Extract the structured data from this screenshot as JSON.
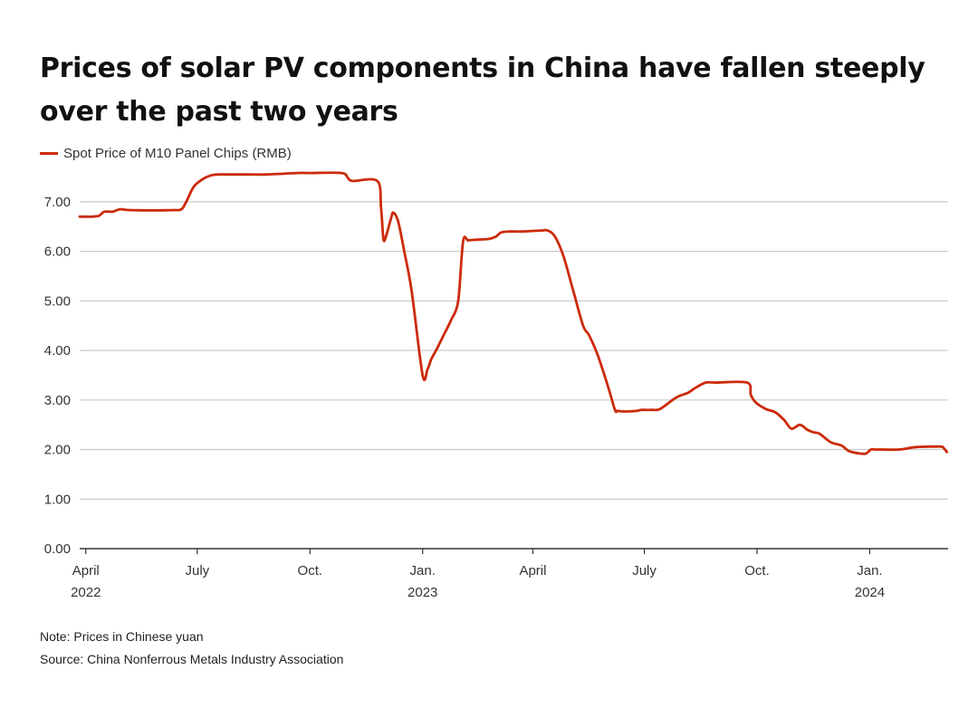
{
  "title": "Prices of solar PV components in China have fallen steeply over the past two years",
  "legend": {
    "label": "Spot Price of M10 Panel Chips (RMB)"
  },
  "colors": {
    "line": "#cc2a0b",
    "grid": "#c8c8c8",
    "axis": "#333333",
    "tick_text": "#333333"
  },
  "footer": {
    "note": "Note: Prices in Chinese yuan",
    "source": "Source: China Nonferrous Metals Industry Association"
  },
  "chart_data": {
    "type": "line",
    "title": "Prices of solar PV components in China have fallen steeply over the past two years",
    "xlabel": "",
    "ylabel": "",
    "ylim": [
      0,
      7.6
    ],
    "xlim": [
      "2022-03-27",
      "2024-03-05"
    ],
    "grid": "horizontal",
    "legend_position": "top-left",
    "y_ticks": [
      {
        "value": 0,
        "label": "0.00"
      },
      {
        "value": 1,
        "label": "1.00"
      },
      {
        "value": 2,
        "label": "2.00"
      },
      {
        "value": 3,
        "label": "3.00"
      },
      {
        "value": 4,
        "label": "4.00"
      },
      {
        "value": 5,
        "label": "5.00"
      },
      {
        "value": 6,
        "label": "6.00"
      },
      {
        "value": 7,
        "label": "7.00"
      }
    ],
    "x_ticks": [
      {
        "date": "2022-04-01",
        "label": "April",
        "sublabel": "2022"
      },
      {
        "date": "2022-07-01",
        "label": "July",
        "sublabel": ""
      },
      {
        "date": "2022-10-01",
        "label": "Oct.",
        "sublabel": ""
      },
      {
        "date": "2023-01-01",
        "label": "Jan.",
        "sublabel": "2023"
      },
      {
        "date": "2023-04-01",
        "label": "April",
        "sublabel": ""
      },
      {
        "date": "2023-07-01",
        "label": "July",
        "sublabel": ""
      },
      {
        "date": "2023-10-01",
        "label": "Oct.",
        "sublabel": ""
      },
      {
        "date": "2024-01-01",
        "label": "Jan.",
        "sublabel": "2024"
      }
    ],
    "series": [
      {
        "name": "Spot Price of M10 Panel Chips (RMB)",
        "x": [
          "2022-03-27",
          "2022-04-06",
          "2022-04-12",
          "2022-04-16",
          "2022-04-23",
          "2022-04-29",
          "2022-05-08",
          "2022-06-10",
          "2022-06-18",
          "2022-06-22",
          "2022-06-28",
          "2022-07-05",
          "2022-07-12",
          "2022-07-19",
          "2022-08-12",
          "2022-08-26",
          "2022-09-20",
          "2022-10-01",
          "2022-10-27",
          "2022-11-01",
          "2022-11-05",
          "2022-11-25",
          "2022-11-28",
          "2022-11-30",
          "2022-12-02",
          "2022-12-06",
          "2022-12-08",
          "2022-12-12",
          "2022-12-17",
          "2022-12-23",
          "2023-01-01",
          "2023-01-05",
          "2023-01-08",
          "2023-01-13",
          "2023-01-18",
          "2023-01-24",
          "2023-01-30",
          "2023-02-03",
          "2023-02-07",
          "2023-02-11",
          "2023-02-24",
          "2023-03-02",
          "2023-03-06",
          "2023-03-13",
          "2023-03-23",
          "2023-04-08",
          "2023-04-13",
          "2023-04-19",
          "2023-04-26",
          "2023-05-04",
          "2023-05-12",
          "2023-05-17",
          "2023-05-24",
          "2023-06-01",
          "2023-06-07",
          "2023-06-09",
          "2023-06-13",
          "2023-06-19",
          "2023-06-25",
          "2023-06-29",
          "2023-07-08",
          "2023-07-14",
          "2023-07-27",
          "2023-08-06",
          "2023-08-12",
          "2023-08-20",
          "2023-08-29",
          "2023-09-23",
          "2023-09-26",
          "2023-09-30",
          "2023-10-08",
          "2023-10-16",
          "2023-10-23",
          "2023-10-29",
          "2023-11-05",
          "2023-11-11",
          "2023-11-16",
          "2023-11-21",
          "2023-11-30",
          "2023-12-09",
          "2023-12-15",
          "2023-12-24",
          "2023-12-29",
          "2024-01-02",
          "2024-01-05",
          "2024-01-09",
          "2024-01-25",
          "2024-02-08",
          "2024-02-27",
          "2024-03-01",
          "2024-03-04"
        ],
        "y": [
          6.7,
          6.7,
          6.72,
          6.8,
          6.8,
          6.85,
          6.83,
          6.83,
          6.85,
          7.0,
          7.3,
          7.45,
          7.53,
          7.55,
          7.55,
          7.55,
          7.58,
          7.58,
          7.58,
          7.48,
          7.42,
          7.42,
          6.9,
          6.25,
          6.3,
          6.65,
          6.78,
          6.6,
          6.0,
          5.2,
          3.5,
          3.62,
          3.82,
          4.05,
          4.3,
          4.6,
          5.0,
          6.2,
          6.22,
          6.23,
          6.25,
          6.3,
          6.38,
          6.4,
          6.4,
          6.42,
          6.42,
          6.3,
          5.9,
          5.2,
          4.5,
          4.3,
          3.9,
          3.3,
          2.8,
          2.78,
          2.77,
          2.77,
          2.78,
          2.8,
          2.8,
          2.82,
          3.05,
          3.15,
          3.25,
          3.35,
          3.35,
          3.35,
          3.1,
          2.95,
          2.82,
          2.75,
          2.6,
          2.42,
          2.5,
          2.4,
          2.35,
          2.32,
          2.15,
          2.08,
          1.97,
          1.92,
          1.92,
          2.0,
          2.0,
          2.0,
          2.0,
          2.05,
          2.06,
          2.04,
          1.95
        ]
      }
    ]
  }
}
